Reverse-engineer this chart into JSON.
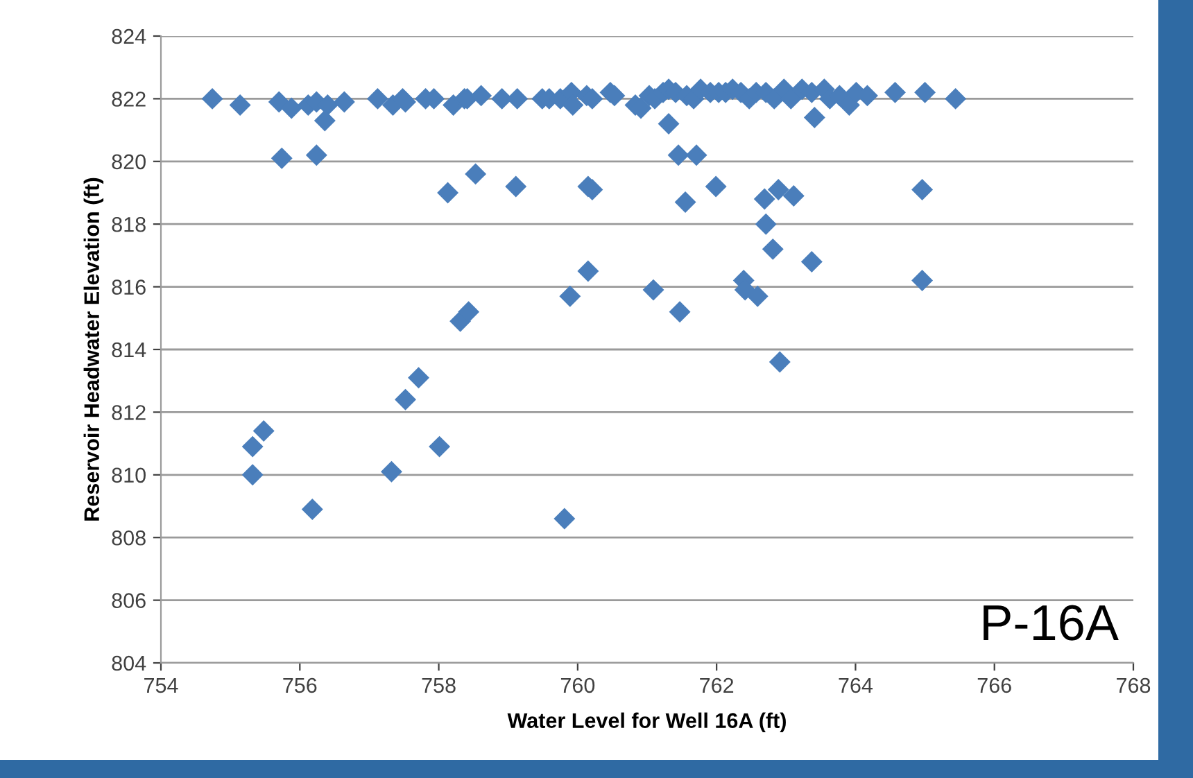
{
  "chart_data": {
    "type": "scatter",
    "xlabel": "Water Level for Well 16A (ft)",
    "ylabel": "Reservoir Headwater Elevation (ft)",
    "annotations": [
      "P-16A"
    ],
    "xlim": [
      754,
      768
    ],
    "xticks": [
      754,
      756,
      758,
      760,
      762,
      764,
      766,
      768
    ],
    "ylim": [
      804,
      824
    ],
    "yticks": [
      804,
      806,
      808,
      810,
      812,
      814,
      816,
      818,
      820,
      822,
      824
    ],
    "grid": "y",
    "legend": false,
    "marker": "diamond",
    "series": [
      {
        "color": "#4a7ebb",
        "x": [
          754.74,
          755.14,
          755.7,
          755.88,
          756.12,
          756.24,
          756.4,
          756.64,
          757.12,
          757.34,
          757.48,
          757.52,
          757.81,
          757.93,
          758.21,
          758.37,
          758.41,
          758.61,
          758.91,
          759.13,
          759.49,
          759.59,
          759.75,
          759.91,
          759.93,
          760.13,
          760.21,
          760.47,
          760.53,
          760.83,
          760.91,
          761.03,
          761.11,
          761.23,
          761.31,
          761.41,
          761.57,
          761.67,
          761.77,
          761.91,
          762.03,
          762.13,
          762.23,
          762.35,
          762.47,
          762.57,
          762.71,
          762.83,
          762.97,
          763.07,
          763.23,
          763.37,
          763.55,
          763.63,
          763.77,
          763.91,
          764.01,
          764.17,
          764.57,
          765.0,
          765.44,
          756.36,
          755.74,
          756.24,
          761.31,
          763.41,
          761.45,
          761.71,
          758.13,
          758.53,
          759.11,
          760.15,
          760.21,
          761.99,
          761.55,
          762.69,
          762.89,
          763.11,
          764.96,
          762.71,
          762.81,
          763.37,
          762.39,
          762.41,
          762.59,
          764.96,
          760.15,
          761.09,
          761.47,
          759.89,
          758.31,
          758.43,
          757.71,
          757.52,
          762.91,
          755.48,
          755.32,
          758.01,
          755.32,
          757.32,
          756.18,
          759.81
        ],
        "values": [
          822.0,
          821.8,
          821.9,
          821.7,
          821.8,
          821.9,
          821.8,
          821.9,
          822.0,
          821.8,
          822.0,
          821.9,
          822.0,
          822.0,
          821.8,
          822.0,
          822.0,
          822.1,
          822.0,
          822.0,
          822.0,
          822.0,
          822.0,
          822.2,
          821.8,
          822.1,
          822.0,
          822.2,
          822.1,
          821.8,
          821.7,
          822.1,
          822.0,
          822.2,
          822.3,
          822.2,
          822.1,
          822.0,
          822.3,
          822.2,
          822.2,
          822.2,
          822.3,
          822.2,
          822.0,
          822.2,
          822.2,
          822.0,
          822.3,
          822.0,
          822.3,
          822.2,
          822.3,
          822.0,
          822.1,
          821.8,
          822.2,
          822.1,
          822.2,
          822.2,
          822.0,
          821.3,
          820.1,
          820.2,
          821.2,
          821.4,
          820.2,
          820.2,
          819.0,
          819.6,
          819.2,
          819.2,
          819.1,
          819.2,
          818.7,
          818.8,
          819.1,
          818.9,
          819.1,
          818.0,
          817.2,
          816.8,
          816.2,
          815.9,
          815.7,
          816.2,
          816.5,
          815.9,
          815.2,
          815.7,
          814.9,
          815.2,
          813.1,
          812.4,
          813.6,
          811.4,
          810.9,
          810.9,
          810.0,
          810.1,
          808.9,
          808.6
        ]
      }
    ]
  }
}
